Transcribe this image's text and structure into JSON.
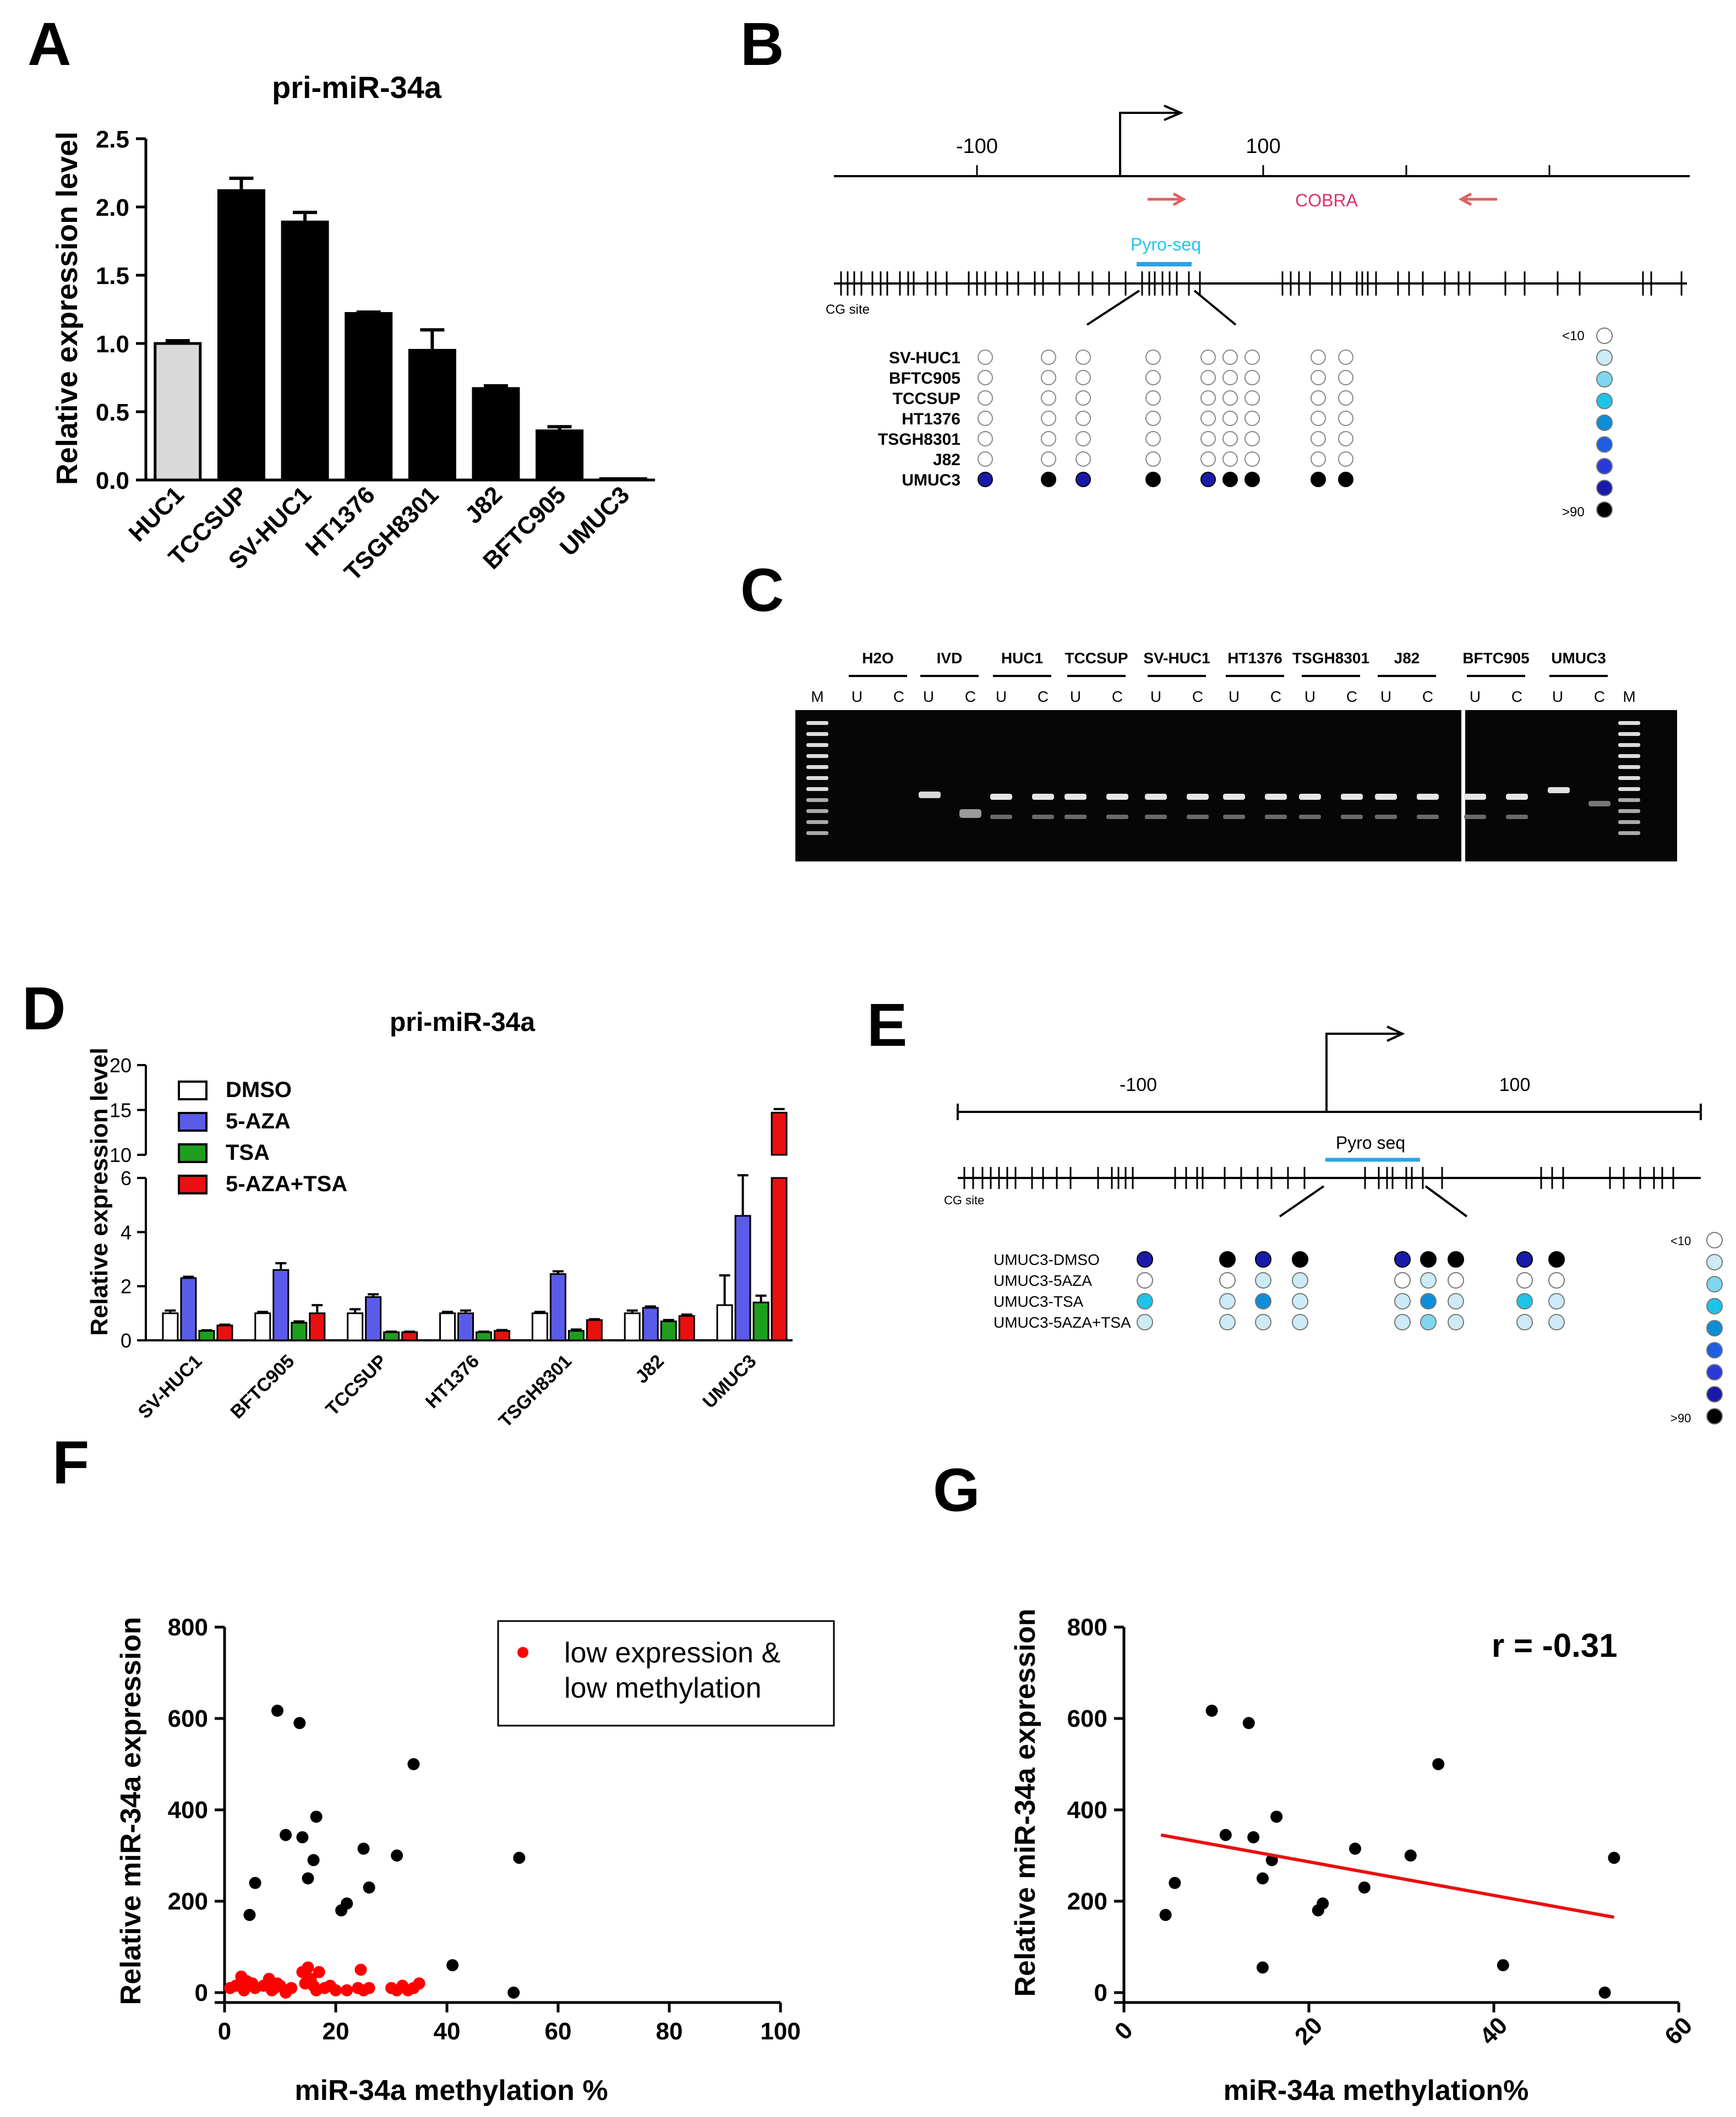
{
  "panels": {
    "A": "A",
    "B": "B",
    "C": "C",
    "D": "D",
    "E": "E",
    "F": "F",
    "G": "G"
  },
  "colors": {
    "bar_light": "#d9d9d9",
    "bar_dark": "#000000",
    "dmso": "#ffffff",
    "aza": "#5b5bea",
    "tsa": "#1e9e1e",
    "combo": "#e81010",
    "primer": "#e06060",
    "cobra_text": "#e0306a",
    "pyro": "#2aa3e6",
    "pyro_text": "#1fc7e8",
    "red_dot": "#ff0000",
    "fit_line": "#e81010",
    "meth_scale": [
      "#ffffff",
      "#cdebf5",
      "#7fd7ef",
      "#1ec3e8",
      "#0e8ed8",
      "#1d5fe0",
      "#2a3ad8",
      "#1a1aa8",
      "#000000"
    ]
  },
  "chart_data": [
    {
      "panel": "A",
      "type": "bar",
      "title": "pri-miR-34a",
      "ylabel": "Relative expression level",
      "xlabel": "",
      "ylim": [
        0,
        2.5
      ],
      "yticks": [
        "0.0",
        "0.5",
        "1.0",
        "1.5",
        "2.0",
        "2.5"
      ],
      "categories": [
        "HUC1",
        "TCCSUP",
        "SV-HUC1",
        "HT1376",
        "TSGH8301",
        "J82",
        "BFTC905",
        "UMUC3"
      ],
      "values": [
        1.0,
        2.12,
        1.89,
        1.22,
        0.95,
        0.67,
        0.36,
        0.01
      ],
      "errors": [
        0.02,
        0.09,
        0.07,
        0.01,
        0.15,
        0.02,
        0.03,
        0.0
      ]
    },
    {
      "panel": "D",
      "type": "bar",
      "title": "pri-miR-34a",
      "ylabel": "Relative expression level",
      "xlabel": "",
      "ylim_lower": [
        0,
        6
      ],
      "ylim_upper": [
        10,
        20
      ],
      "yticks_lower": [
        "0",
        "2",
        "4",
        "6"
      ],
      "yticks_upper": [
        "10",
        "15",
        "20"
      ],
      "categories": [
        "SV-HUC1",
        "BFTC905",
        "TCCSUP",
        "HT1376",
        "TSGH8301",
        "J82",
        "UMUC3"
      ],
      "series": [
        {
          "name": "DMSO",
          "values": [
            1.0,
            1.0,
            1.0,
            1.0,
            1.0,
            1.0,
            1.3
          ],
          "errors": [
            0.1,
            0.05,
            0.15,
            0.05,
            0.05,
            0.1,
            1.1
          ]
        },
        {
          "name": "5-AZA",
          "values": [
            2.3,
            2.6,
            1.6,
            1.0,
            2.45,
            1.2,
            4.6
          ],
          "errors": [
            0.05,
            0.25,
            0.1,
            0.1,
            0.1,
            0.05,
            1.5
          ]
        },
        {
          "name": "TSA",
          "values": [
            0.35,
            0.65,
            0.3,
            0.3,
            0.35,
            0.7,
            1.4
          ],
          "errors": [
            0.02,
            0.05,
            0.02,
            0.02,
            0.05,
            0.05,
            0.25
          ]
        },
        {
          "name": "5-AZA+TSA",
          "values": [
            0.55,
            1.0,
            0.3,
            0.35,
            0.75,
            0.9,
            14.7
          ],
          "errors": [
            0.03,
            0.3,
            0.02,
            0.03,
            0.03,
            0.05,
            0.4
          ]
        }
      ]
    },
    {
      "panel": "F",
      "type": "scatter",
      "xlabel": "miR-34a methylation %",
      "ylabel": "Relative miR-34a expression",
      "xlim": [
        0,
        100
      ],
      "ylim": [
        0,
        800
      ],
      "xticks": [
        "0",
        "20",
        "40",
        "60",
        "80",
        "100"
      ],
      "yticks": [
        "0",
        "200",
        "400",
        "600",
        "800"
      ],
      "legend": {
        "label_line1": "low expression &",
        "label_line2": "low methylation",
        "position": "top-right"
      },
      "series": [
        {
          "name": "black",
          "x": [
            4.5,
            5.5,
            9.5,
            11,
            13.5,
            14,
            15,
            16,
            16.5,
            21,
            22,
            25,
            26,
            31,
            34,
            41,
            52,
            53
          ],
          "y": [
            170,
            240,
            617,
            345,
            590,
            340,
            250,
            290,
            385,
            180,
            195,
            315,
            230,
            300,
            500,
            60,
            0,
            295
          ]
        },
        {
          "name": "low expression & low methylation",
          "x": [
            1,
            2,
            3,
            3.5,
            4,
            5,
            5.5,
            7,
            8,
            8.5,
            9,
            9.5,
            10,
            11,
            12,
            14,
            14.5,
            15,
            15.5,
            16,
            16.5,
            17,
            18,
            19,
            20,
            22,
            24,
            24.5,
            25,
            26,
            30,
            31,
            32,
            33,
            34,
            35
          ],
          "y": [
            10,
            15,
            35,
            5,
            25,
            20,
            10,
            15,
            30,
            5,
            10,
            20,
            15,
            0,
            10,
            45,
            20,
            55,
            30,
            15,
            5,
            45,
            10,
            15,
            5,
            5,
            10,
            50,
            5,
            10,
            10,
            5,
            15,
            5,
            10,
            20
          ]
        }
      ]
    },
    {
      "panel": "G",
      "type": "scatter",
      "xlabel": "miR-34a methylation%",
      "ylabel": "Relative miR-34a expression",
      "xlim": [
        0,
        60
      ],
      "ylim": [
        0,
        800
      ],
      "xticks": [
        "0",
        "20",
        "40",
        "60"
      ],
      "yticks": [
        "0",
        "200",
        "400",
        "600",
        "800"
      ],
      "annotation": "r = -0.31",
      "x": [
        4.5,
        5.5,
        9.5,
        11,
        13.5,
        14,
        15,
        15,
        16,
        16.5,
        21,
        21.5,
        25,
        26,
        31,
        34,
        41,
        52,
        53
      ],
      "y": [
        170,
        240,
        617,
        345,
        590,
        340,
        250,
        55,
        290,
        385,
        180,
        195,
        315,
        230,
        300,
        500,
        60,
        0,
        295
      ],
      "fit": {
        "x": [
          4,
          53
        ],
        "y": [
          345,
          165
        ]
      }
    }
  ],
  "diagram_B": {
    "tss_ticks": [
      "-100",
      "100"
    ],
    "cobra_label": "COBRA",
    "pyro_label": "Pyro-seq",
    "cg_site_label": "CG site",
    "rows": [
      "SV-HUC1",
      "BFTC905",
      "TCCSUP",
      "HT1376",
      "TSGH8301",
      "J82",
      "UMUC3"
    ],
    "umuc3_levels": [
      7,
      8,
      7,
      8,
      7,
      8,
      8,
      8,
      8
    ],
    "scale_low": "<10",
    "scale_high": ">90"
  },
  "gel_C": {
    "groups": [
      "H2O",
      "IVD",
      "HUC1",
      "TCCSUP",
      "SV-HUC1",
      "HT1376",
      "TSGH8301",
      "J82",
      "BFTC905",
      "UMUC3"
    ],
    "marker": "M",
    "u": "U",
    "c": "C"
  },
  "diagram_E": {
    "tss_ticks": [
      "-100",
      "100"
    ],
    "pyro_label": "Pyro seq",
    "cg_site_label": "CG site",
    "rows": [
      "UMUC3-DMSO",
      "UMUC3-5AZA",
      "UMUC3-TSA",
      "UMUC3-5AZA+TSA"
    ],
    "levels": [
      [
        7,
        8,
        7,
        8,
        7,
        8,
        8,
        7,
        8
      ],
      [
        0,
        0,
        1,
        1,
        0,
        1,
        0,
        0,
        0
      ],
      [
        3,
        1,
        4,
        1,
        1,
        4,
        1,
        3,
        1
      ],
      [
        1,
        1,
        1,
        1,
        1,
        2,
        1,
        1,
        1
      ]
    ],
    "scale_low": "<10",
    "scale_high": ">90"
  }
}
